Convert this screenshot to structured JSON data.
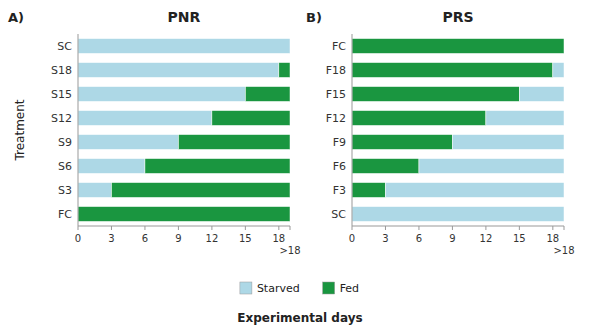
{
  "chart_data": [
    {
      "type": "bar",
      "orientation": "horizontal",
      "stacked": true,
      "title": "PNR",
      "annotations": [
        "A)"
      ],
      "xlabel": "Experimental days",
      "ylabel": "Treatment",
      "categories": [
        "SC",
        "S18",
        "S15",
        "S12",
        "S9",
        "S6",
        "S3",
        "FC"
      ],
      "series": [
        {
          "name": "Starved",
          "color": "#add8e6",
          "values": [
            19,
            18,
            15,
            12,
            9,
            6,
            3,
            0
          ]
        },
        {
          "name": "Fed",
          "color": "#1a9640",
          "values": [
            0,
            1,
            4,
            7,
            10,
            13,
            16,
            19
          ]
        }
      ],
      "xlim": [
        0,
        19
      ],
      "xticks": [
        0,
        3,
        6,
        9,
        12,
        15,
        18,
        {
          "value": 19,
          "label": ">18"
        }
      ],
      "grid": false,
      "legend": "bottom"
    },
    {
      "type": "bar",
      "orientation": "horizontal",
      "stacked": true,
      "title": "PRS",
      "annotations": [
        "B)"
      ],
      "categories": [
        "FC",
        "F18",
        "F15",
        "F12",
        "F9",
        "F6",
        "F3",
        "SC"
      ],
      "series": [
        {
          "name": "Fed",
          "color": "#1a9640",
          "values": [
            19,
            18,
            15,
            12,
            9,
            6,
            3,
            0
          ]
        },
        {
          "name": "Starved",
          "color": "#add8e6",
          "values": [
            0,
            1,
            4,
            7,
            10,
            13,
            16,
            19
          ]
        }
      ],
      "xlim": [
        0,
        19
      ],
      "xticks": [
        0,
        3,
        6,
        9,
        12,
        15,
        18,
        {
          "value": 19,
          "label": ">18"
        }
      ],
      "grid": false
    }
  ]
}
